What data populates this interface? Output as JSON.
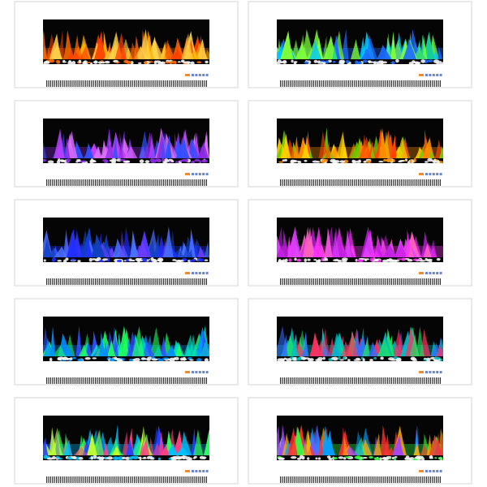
{
  "panels": [
    {
      "flame_colors": [
        "#ff6a00",
        "#ffb000",
        "#ff3d00",
        "#ffd24a"
      ]
    },
    {
      "flame_colors": [
        "#1e6bff",
        "#18d08a",
        "#7dff3a",
        "#00c8ff"
      ]
    },
    {
      "flame_colors": [
        "#8a2be2",
        "#c040ff",
        "#3050ff",
        "#e070ff"
      ]
    },
    {
      "flame_colors": [
        "#ff8c00",
        "#ffd000",
        "#6dcc00",
        "#ff4500"
      ]
    },
    {
      "flame_colors": [
        "#2030ff",
        "#6a3cff",
        "#1040c0",
        "#4a70ff"
      ]
    },
    {
      "flame_colors": [
        "#ff30ff",
        "#c020e0",
        "#ff60c0",
        "#e040ff"
      ]
    },
    {
      "flame_colors": [
        "#0090ff",
        "#00e0c0",
        "#3050ff",
        "#20ff60"
      ]
    },
    {
      "flame_colors": [
        "#00c0c0",
        "#ff3060",
        "#20e060",
        "#3070ff"
      ]
    },
    {
      "flame_colors": [
        "#00c0ff",
        "#30ff60",
        "#ff4080",
        "#2040ff",
        "#c0ff30"
      ]
    },
    {
      "flame_colors": [
        "#30ff40",
        "#ff3030",
        "#00a0ff",
        "#ffb000",
        "#a040ff"
      ]
    }
  ]
}
